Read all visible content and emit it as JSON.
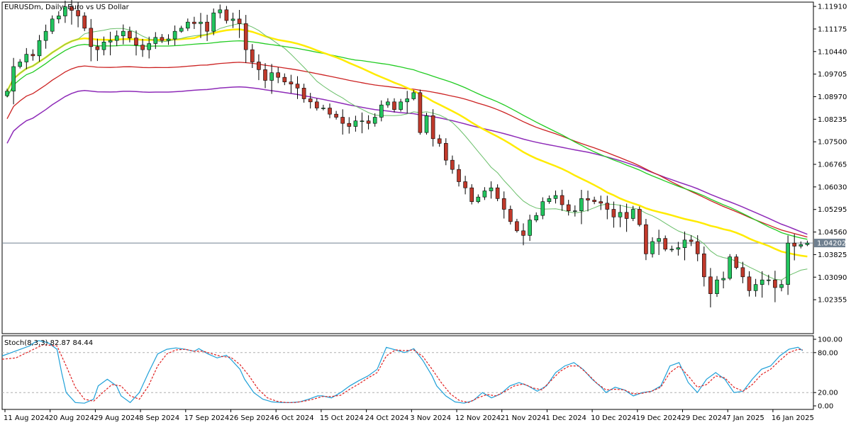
{
  "header": {
    "title": "EURUSDm, Daily:  Euro vs US Dollar"
  },
  "colors": {
    "background": "#ffffff",
    "bull_candle": "#22c55e",
    "bear_candle": "#c0392b",
    "wick": "#000000",
    "ma_thin": "#6abf6a",
    "ma_yellow": "#ffeb00",
    "ma_green": "#22cc22",
    "ma_red": "#cc2222",
    "ma_purple": "#8e2bb8",
    "stoch_main": "#1fa0d8",
    "stoch_signal": "#e02020",
    "price_line": "#708090"
  },
  "chart_data": [
    {
      "type": "candlestick",
      "title": "EURUSDm, Daily:  Euro vs US Dollar",
      "ylim": [
        1.0125,
        1.1205
      ],
      "y_ticks": [
        "1.11910",
        "1.11175",
        "1.10440",
        "1.09705",
        "1.08970",
        "1.08235",
        "1.07500",
        "1.06765",
        "1.06030",
        "1.05295",
        "1.04560",
        "1.03825",
        "1.03090",
        "1.02355"
      ],
      "current_price": "1.04202",
      "x_labels": [
        {
          "label": "11 Aug 2024",
          "index": 0
        },
        {
          "label": "20 Aug 2024",
          "index": 7
        },
        {
          "label": "29 Aug 2024",
          "index": 14
        },
        {
          "label": "8 Sep 2024",
          "index": 21
        },
        {
          "label": "17 Sep 2024",
          "index": 28
        },
        {
          "label": "26 Sep 2024",
          "index": 35
        },
        {
          "label": "6 Oct 2024",
          "index": 42
        },
        {
          "label": "15 Oct 2024",
          "index": 49
        },
        {
          "label": "24 Oct 2024",
          "index": 56
        },
        {
          "label": "3 Nov 2024",
          "index": 63
        },
        {
          "label": "12 Nov 2024",
          "index": 70
        },
        {
          "label": "21 Nov 2024",
          "index": 77
        },
        {
          "label": "1 Dec 2024",
          "index": 84
        },
        {
          "label": "10 Dec 2024",
          "index": 91
        },
        {
          "label": "19 Dec 2024",
          "index": 98
        },
        {
          "label": "29 Dec 2024",
          "index": 105
        },
        {
          "label": "7 Jan 2025",
          "index": 112
        },
        {
          "label": "16 Jan 2025",
          "index": 119
        }
      ],
      "closes": [
        1.0915,
        1.0995,
        1.101,
        1.1035,
        1.103,
        1.108,
        1.111,
        1.115,
        1.116,
        1.119,
        1.1178,
        1.116,
        1.112,
        1.106,
        1.105,
        1.1075,
        1.108,
        1.1095,
        1.111,
        1.1088,
        1.1065,
        1.105,
        1.107,
        1.109,
        1.108,
        1.1085,
        1.111,
        1.112,
        1.114,
        1.1135,
        1.114,
        1.111,
        1.117,
        1.118,
        1.1145,
        1.115,
        1.1135,
        1.105,
        1.101,
        1.0985,
        1.095,
        1.0975,
        1.096,
        1.0945,
        1.0938,
        1.0925,
        1.089,
        1.088,
        1.086,
        1.086,
        1.084,
        1.083,
        1.081,
        1.08,
        1.0818,
        1.0818,
        1.081,
        1.083,
        1.087,
        1.088,
        1.0855,
        1.088,
        1.089,
        1.091,
        1.078,
        1.0835,
        1.076,
        1.0745,
        1.069,
        1.066,
        1.062,
        1.06,
        1.0555,
        1.057,
        1.059,
        1.06,
        1.0565,
        1.053,
        1.049,
        1.046,
        1.0445,
        1.0495,
        1.051,
        1.0555,
        1.0565,
        1.0575,
        1.0545,
        1.0525,
        1.0525,
        1.0565,
        1.056,
        1.0555,
        1.055,
        1.053,
        1.0505,
        1.052,
        1.05,
        1.053,
        1.048,
        1.0385,
        1.0425,
        1.0435,
        1.04,
        1.04,
        1.0405,
        1.043,
        1.0425,
        1.0385,
        1.031,
        1.0255,
        1.03,
        1.0305,
        1.0375,
        1.034,
        1.031,
        1.0265,
        1.0285,
        1.03,
        1.03,
        1.0275,
        1.0285,
        1.042,
        1.041,
        1.0415,
        1.042
      ]
    },
    {
      "type": "line",
      "title": "Stoch(8,3,3) 82.87 84.44",
      "ylim": [
        0,
        100
      ],
      "y_ticks": [
        "100.00",
        "80.00",
        "20.00",
        "0.00"
      ],
      "levels": [
        20,
        80
      ],
      "series": [
        {
          "name": "Stoch(8,3,3)",
          "values": [
            [
              0,
              75
            ],
            [
              2,
              80
            ],
            [
              4,
              85
            ],
            [
              6,
              90
            ],
            [
              7,
              95
            ],
            [
              8,
              98
            ],
            [
              10,
              95
            ],
            [
              12,
              85
            ],
            [
              13,
              50
            ],
            [
              14,
              20
            ],
            [
              16,
              5
            ],
            [
              18,
              4
            ],
            [
              20,
              10
            ],
            [
              21,
              30
            ],
            [
              23,
              40
            ],
            [
              25,
              30
            ],
            [
              26,
              15
            ],
            [
              28,
              5
            ],
            [
              30,
              20
            ],
            [
              32,
              50
            ],
            [
              34,
              78
            ],
            [
              36,
              85
            ],
            [
              38,
              87
            ],
            [
              40,
              85
            ],
            [
              42,
              82
            ],
            [
              43,
              86
            ],
            [
              45,
              78
            ],
            [
              47,
              72
            ],
            [
              49,
              76
            ],
            [
              50,
              70
            ],
            [
              52,
              55
            ],
            [
              53,
              40
            ],
            [
              55,
              20
            ],
            [
              57,
              10
            ],
            [
              59,
              6
            ],
            [
              61,
              5
            ],
            [
              63,
              5
            ],
            [
              65,
              6
            ],
            [
              67,
              10
            ],
            [
              69,
              15
            ],
            [
              70,
              15
            ],
            [
              72,
              12
            ],
            [
              74,
              20
            ],
            [
              76,
              30
            ],
            [
              78,
              38
            ],
            [
              80,
              45
            ],
            [
              82,
              55
            ],
            [
              84,
              88
            ],
            [
              86,
              84
            ],
            [
              88,
              80
            ],
            [
              90,
              86
            ],
            [
              92,
              68
            ],
            [
              94,
              45
            ],
            [
              95,
              30
            ],
            [
              97,
              15
            ],
            [
              99,
              6
            ],
            [
              101,
              4
            ],
            [
              103,
              8
            ],
            [
              105,
              20
            ],
            [
              107,
              12
            ],
            [
              109,
              18
            ],
            [
              111,
              30
            ],
            [
              113,
              35
            ],
            [
              115,
              30
            ],
            [
              117,
              22
            ],
            [
              119,
              30
            ],
            [
              121,
              50
            ],
            [
              123,
              60
            ],
            [
              125,
              65
            ],
            [
              127,
              55
            ],
            [
              129,
              40
            ],
            [
              131,
              28
            ],
            [
              132,
              20
            ],
            [
              134,
              28
            ],
            [
              136,
              24
            ],
            [
              138,
              15
            ],
            [
              140,
              20
            ],
            [
              142,
              22
            ],
            [
              144,
              30
            ],
            [
              146,
              60
            ],
            [
              148,
              65
            ],
            [
              150,
              35
            ],
            [
              152,
              20
            ],
            [
              154,
              40
            ],
            [
              156,
              50
            ],
            [
              158,
              40
            ],
            [
              160,
              20
            ],
            [
              162,
              22
            ],
            [
              164,
              40
            ],
            [
              166,
              55
            ],
            [
              168,
              60
            ],
            [
              170,
              75
            ],
            [
              172,
              85
            ],
            [
              174,
              88
            ],
            [
              175,
              83
            ]
          ]
        },
        {
          "name": "Signal",
          "values": [
            [
              0,
              70
            ],
            [
              3,
              72
            ],
            [
              6,
              82
            ],
            [
              9,
              92
            ],
            [
              12,
              90
            ],
            [
              14,
              60
            ],
            [
              16,
              28
            ],
            [
              18,
              10
            ],
            [
              20,
              7
            ],
            [
              22,
              20
            ],
            [
              24,
              32
            ],
            [
              26,
              30
            ],
            [
              28,
              15
            ],
            [
              30,
              10
            ],
            [
              32,
              30
            ],
            [
              34,
              60
            ],
            [
              36,
              78
            ],
            [
              38,
              84
            ],
            [
              40,
              85
            ],
            [
              42,
              82
            ],
            [
              44,
              82
            ],
            [
              46,
              78
            ],
            [
              48,
              74
            ],
            [
              50,
              73
            ],
            [
              52,
              62
            ],
            [
              54,
              45
            ],
            [
              56,
              25
            ],
            [
              58,
              12
            ],
            [
              60,
              7
            ],
            [
              62,
              5
            ],
            [
              64,
              5
            ],
            [
              66,
              7
            ],
            [
              68,
              10
            ],
            [
              70,
              14
            ],
            [
              72,
              14
            ],
            [
              74,
              16
            ],
            [
              76,
              25
            ],
            [
              78,
              33
            ],
            [
              80,
              42
            ],
            [
              82,
              50
            ],
            [
              84,
              75
            ],
            [
              86,
              84
            ],
            [
              88,
              83
            ],
            [
              90,
              84
            ],
            [
              92,
              74
            ],
            [
              94,
              55
            ],
            [
              96,
              35
            ],
            [
              98,
              18
            ],
            [
              100,
              8
            ],
            [
              102,
              5
            ],
            [
              104,
              12
            ],
            [
              106,
              17
            ],
            [
              108,
              15
            ],
            [
              110,
              22
            ],
            [
              112,
              30
            ],
            [
              114,
              33
            ],
            [
              116,
              27
            ],
            [
              118,
              24
            ],
            [
              120,
              38
            ],
            [
              122,
              52
            ],
            [
              124,
              60
            ],
            [
              126,
              60
            ],
            [
              128,
              48
            ],
            [
              130,
              34
            ],
            [
              132,
              24
            ],
            [
              134,
              25
            ],
            [
              136,
              24
            ],
            [
              138,
              18
            ],
            [
              140,
              19
            ],
            [
              142,
              22
            ],
            [
              144,
              28
            ],
            [
              146,
              50
            ],
            [
              148,
              60
            ],
            [
              150,
              45
            ],
            [
              152,
              28
            ],
            [
              154,
              32
            ],
            [
              156,
              45
            ],
            [
              158,
              42
            ],
            [
              160,
              28
            ],
            [
              162,
              22
            ],
            [
              164,
              32
            ],
            [
              166,
              47
            ],
            [
              168,
              55
            ],
            [
              170,
              68
            ],
            [
              172,
              80
            ],
            [
              174,
              85
            ],
            [
              175,
              84
            ]
          ]
        }
      ]
    }
  ]
}
